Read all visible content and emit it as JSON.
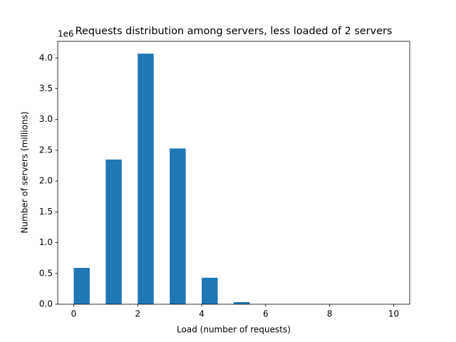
{
  "chart_data": {
    "type": "histogram",
    "title": "Requests distribution among servers, less loaded of 2 servers",
    "x_label": "Load (number of requests)",
    "y_label": "Number of servers (millions)",
    "y_offset_label": "1e6",
    "color": "#1f77b4",
    "bins": [
      0,
      0.5,
      1,
      1.5,
      2,
      2.5,
      3,
      3.5,
      4,
      4.5,
      5,
      5.5,
      6,
      6.5,
      7,
      7.5,
      8,
      8.5,
      9,
      9.5,
      10
    ],
    "values": [
      0.59,
      0,
      2.35,
      0,
      4.07,
      0,
      2.53,
      0,
      0.43,
      0,
      0.035,
      0,
      0,
      0,
      0,
      0,
      0,
      0,
      0,
      0
    ],
    "xlim": [
      -0.5,
      10.5
    ],
    "xticks": [
      0,
      2,
      4,
      6,
      8,
      10
    ],
    "ylim": [
      0,
      4.27
    ],
    "yticks": [
      {
        "value": 0,
        "label": "0.0"
      },
      0.5,
      {
        "value": 1,
        "label": "1.0"
      },
      1.5,
      {
        "value": 2,
        "label": "2.0"
      },
      2.5,
      {
        "value": 3,
        "label": "3.0"
      },
      3.5,
      {
        "value": 4,
        "label": "4.0"
      }
    ],
    "grid": false
  }
}
